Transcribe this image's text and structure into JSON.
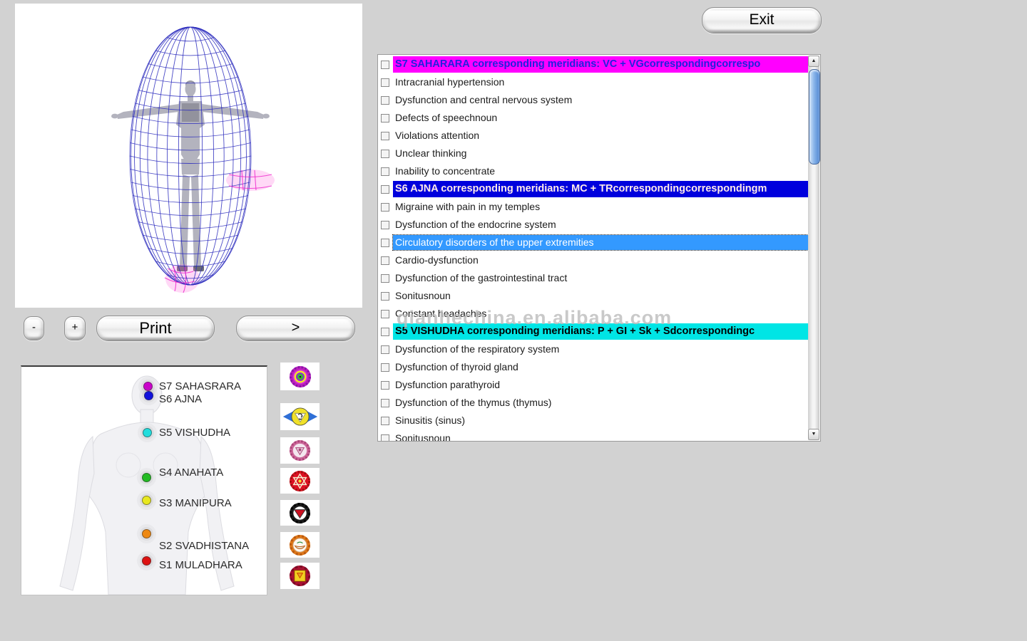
{
  "exit": {
    "label": "Exit"
  },
  "controls": {
    "minus_label": "-",
    "plus_label": "+",
    "print_label": "Print",
    "next_label": ">"
  },
  "watermark": {
    "text": "qianhechina.en.alibaba.com"
  },
  "list": {
    "selected_bg": "#3399ff",
    "items": [
      {
        "type": "header",
        "bg": "#ff00ff",
        "fg": "#2222dd",
        "text": "S7 SAHARARA corresponding meridians: VC + VGcorrespondingcorrespo"
      },
      {
        "text": "Intracranial hypertension"
      },
      {
        "text": "Dysfunction and central nervous system"
      },
      {
        "text": "Defects of speechnoun"
      },
      {
        "text": "Violations attention"
      },
      {
        "text": "Unclear thinking"
      },
      {
        "text": "Inability to concentrate"
      },
      {
        "type": "header",
        "bg": "#0000dd",
        "fg": "#ffeaea",
        "text": "S6 AJNA corresponding meridians: MC + TRcorrespondingcorrespondingm"
      },
      {
        "text": "Migraine with pain in my temples"
      },
      {
        "text": "Dysfunction of the endocrine system"
      },
      {
        "type": "selected",
        "bg": "#3399ff",
        "fg": "#ffffff",
        "text": "Circulatory disorders of the upper extremities"
      },
      {
        "text": "Cardio-dysfunction"
      },
      {
        "text": "Dysfunction of the gastrointestinal tract"
      },
      {
        "text": "Sonitusnoun"
      },
      {
        "text": "Constant headaches"
      },
      {
        "type": "header",
        "bg": "#00e5e5",
        "fg": "#000000",
        "text": "S5 VISHUDHA corresponding meridians: P + GI + Sk + Sdcorrespondingc"
      },
      {
        "text": "Dysfunction of the respiratory system"
      },
      {
        "text": "Dysfunction of thyroid gland"
      },
      {
        "text": "Dysfunction parathyroid"
      },
      {
        "text": "Dysfunction of the thymus (thymus)"
      },
      {
        "text": "Sinusitis (sinus)"
      },
      {
        "text": "Sonitusnoun"
      }
    ]
  },
  "chakra_panel": {
    "labels": [
      {
        "id": "S7",
        "label": "S7 SAHASRARA",
        "color": "#cc00cc"
      },
      {
        "id": "S6",
        "label": "S6 AJNA",
        "color": "#1111dd"
      },
      {
        "id": "S5",
        "label": "S5 VISHUDHA",
        "color": "#22dddd"
      },
      {
        "id": "S4",
        "label": "S4 ANAHATA",
        "color": "#22bb22"
      },
      {
        "id": "S3",
        "label": "S3 MANIPURA",
        "color": "#e8e820"
      },
      {
        "id": "S2",
        "label": "S2 SVADHISTANA",
        "color": "#ee8811"
      },
      {
        "id": "S1",
        "label": "S1 MULADHARA",
        "color": "#dd1111"
      }
    ]
  },
  "chakra_icons": [
    "sahasrara-icon",
    "ajna-icon",
    "vishudha-icon",
    "anahata-icon",
    "manipura-icon",
    "svadhistana-icon",
    "muladhara-icon"
  ]
}
